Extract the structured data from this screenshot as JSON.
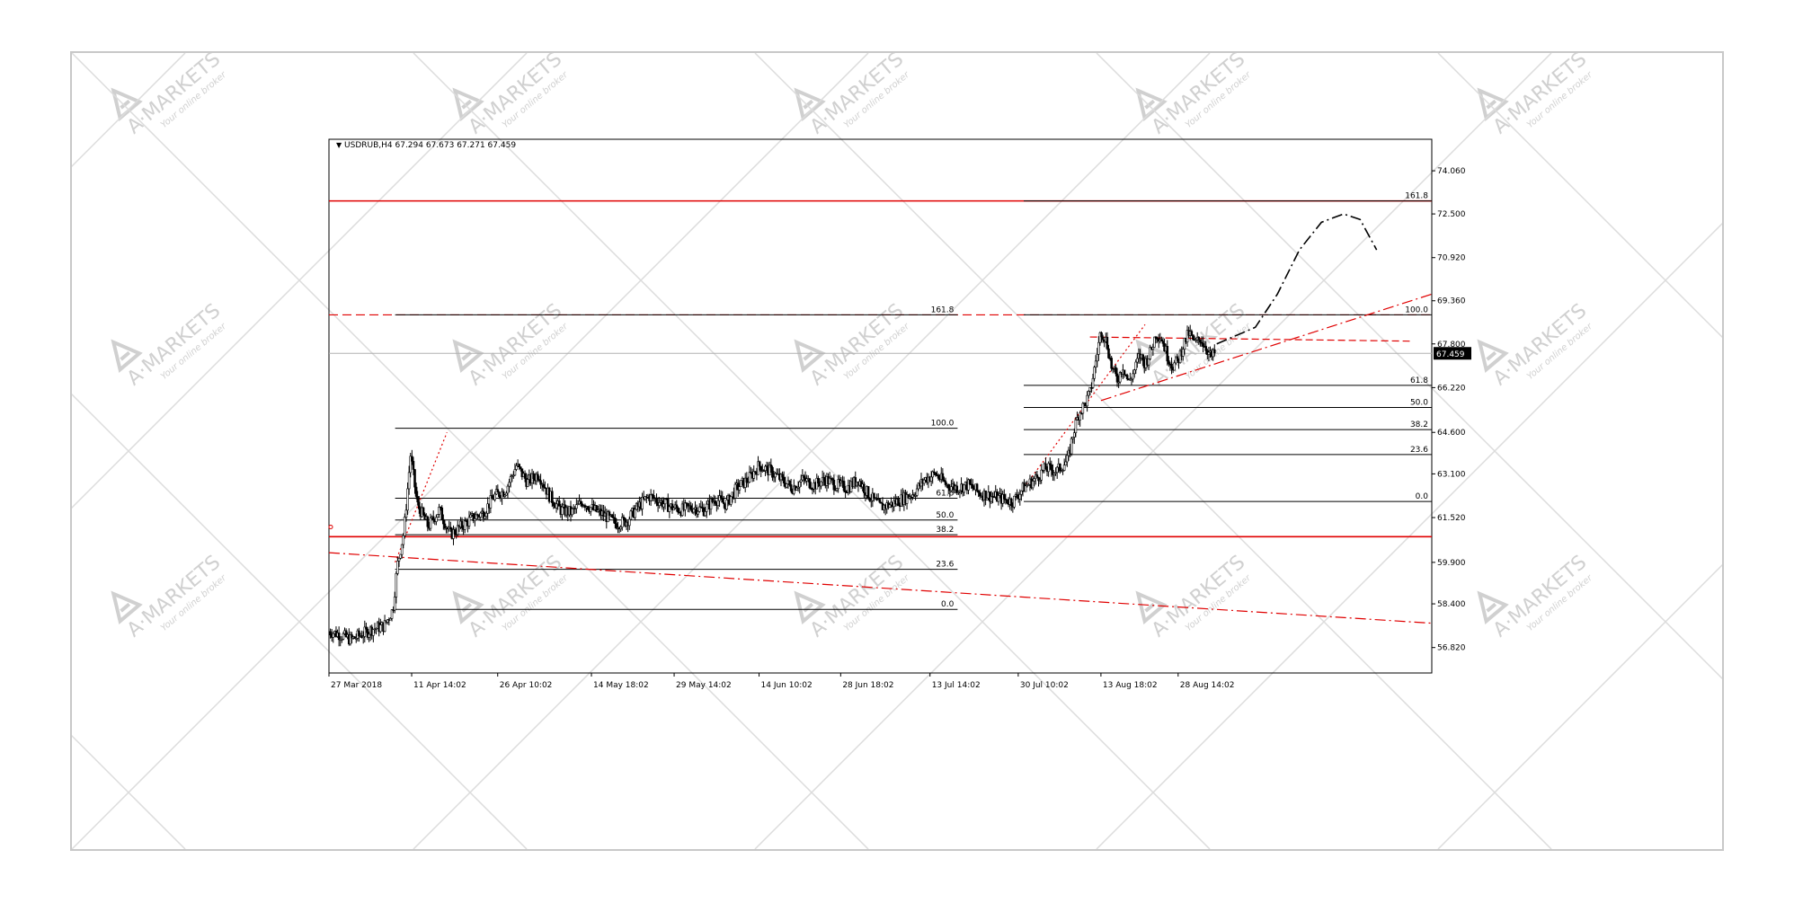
{
  "header": {
    "symbol_line": "USDRUB,H4 67.294 67.673 67.271 67.459"
  },
  "watermark": {
    "brand": "A·MARKETS",
    "tagline": "Your online broker"
  },
  "colors": {
    "candle": "#000000",
    "level_red": "#e00000",
    "fib_black": "#000000",
    "price_box_bg": "#000000",
    "price_box_fg": "#ffffff",
    "watermark": "#d0d0d0"
  },
  "chart_data": {
    "type": "candlestick",
    "symbol": "USDRUB",
    "timeframe": "H4",
    "title": "USDRUB,H4 67.294 67.673 67.271 67.459",
    "ylim": [
      55.9,
      75.2
    ],
    "yticks": [
      74.06,
      72.5,
      70.92,
      69.36,
      67.8,
      66.22,
      64.6,
      63.1,
      61.52,
      59.9,
      58.4,
      56.82
    ],
    "ytick_labels": [
      "74.060",
      "72.500",
      "70.920",
      "69.360",
      "67.800",
      "66.220",
      "64.600",
      "63.100",
      "61.520",
      "59.900",
      "58.400",
      "56.820"
    ],
    "xtick_labels": [
      "27 Mar 2018",
      "11 Apr 14:02",
      "26 Apr 10:02",
      "14 May 18:02",
      "29 May 14:02",
      "14 Jun 10:02",
      "28 Jun 18:02",
      "13 Jul 14:02",
      "30 Jul 10:02",
      "13 Aug 18:02",
      "28 Aug 14:02"
    ],
    "xtick_positions": [
      0,
      0.075,
      0.153,
      0.238,
      0.313,
      0.39,
      0.464,
      0.545,
      0.625,
      0.7,
      0.77
    ],
    "current_price": 67.459,
    "current_price_label": "67.459",
    "horizontal_levels": [
      {
        "value": 72.97,
        "style": "solid",
        "color": "#e00000"
      },
      {
        "value": 68.85,
        "style": "dashed",
        "color": "#e00000"
      },
      {
        "value": 60.83,
        "style": "solid",
        "color": "#e00000"
      }
    ],
    "fib_left": {
      "x_range": [
        0.06,
        0.57
      ],
      "levels": [
        {
          "label": "161.8",
          "value": 68.85
        },
        {
          "label": "100.0",
          "value": 64.75
        },
        {
          "label": "61.8",
          "value": 62.22
        },
        {
          "label": "50.0",
          "value": 61.43
        },
        {
          "label": "38.2",
          "value": 60.9
        },
        {
          "label": "23.6",
          "value": 59.65
        },
        {
          "label": "0.0",
          "value": 58.2
        }
      ]
    },
    "fib_right": {
      "x_range": [
        0.63,
        1.0
      ],
      "levels": [
        {
          "label": "161.8",
          "value": 72.97
        },
        {
          "label": "100.0",
          "value": 68.85
        },
        {
          "label": "61.8",
          "value": 66.3
        },
        {
          "label": "50.0",
          "value": 65.5
        },
        {
          "label": "38.2",
          "value": 64.7
        },
        {
          "label": "23.6",
          "value": 63.8
        },
        {
          "label": "0.0",
          "value": 62.1
        }
      ]
    },
    "trendlines": [
      {
        "style": "dashdot",
        "points": [
          [
            0.0,
            60.25
          ],
          [
            1.0,
            57.7
          ]
        ]
      },
      {
        "style": "dashdot",
        "points": [
          [
            0.7,
            65.75
          ],
          [
            1.0,
            69.6
          ]
        ]
      },
      {
        "style": "dotted",
        "points": [
          [
            0.06,
            59.9
          ],
          [
            0.107,
            64.6
          ]
        ]
      },
      {
        "style": "dotted",
        "points": [
          [
            0.63,
            62.6
          ],
          [
            0.74,
            68.5
          ]
        ]
      },
      {
        "style": "dashed",
        "points": [
          [
            0.69,
            68.05
          ],
          [
            0.98,
            67.9
          ]
        ]
      }
    ],
    "projection": {
      "style": "dashdot",
      "points": [
        [
          0.805,
          67.8
        ],
        [
          0.84,
          68.4
        ],
        [
          0.86,
          69.6
        ],
        [
          0.88,
          71.2
        ],
        [
          0.9,
          72.2
        ],
        [
          0.92,
          72.5
        ],
        [
          0.935,
          72.3
        ],
        [
          0.95,
          71.2
        ]
      ]
    },
    "price_path": [
      [
        0.0,
        57.4
      ],
      [
        0.01,
        57.3
      ],
      [
        0.02,
        57.1
      ],
      [
        0.03,
        57.3
      ],
      [
        0.04,
        57.5
      ],
      [
        0.05,
        57.6
      ],
      [
        0.058,
        58.2
      ],
      [
        0.062,
        59.8
      ],
      [
        0.068,
        61.0
      ],
      [
        0.074,
        63.8
      ],
      [
        0.08,
        62.0
      ],
      [
        0.09,
        61.2
      ],
      [
        0.1,
        61.8
      ],
      [
        0.11,
        60.9
      ],
      [
        0.12,
        61.2
      ],
      [
        0.13,
        61.5
      ],
      [
        0.14,
        61.7
      ],
      [
        0.15,
        62.3
      ],
      [
        0.16,
        62.5
      ],
      [
        0.17,
        63.4
      ],
      [
        0.18,
        62.8
      ],
      [
        0.19,
        63.1
      ],
      [
        0.2,
        62.3
      ],
      [
        0.21,
        61.8
      ],
      [
        0.22,
        61.7
      ],
      [
        0.23,
        62.1
      ],
      [
        0.24,
        61.8
      ],
      [
        0.25,
        61.6
      ],
      [
        0.26,
        61.3
      ],
      [
        0.27,
        61.4
      ],
      [
        0.28,
        61.9
      ],
      [
        0.29,
        62.3
      ],
      [
        0.3,
        62.1
      ],
      [
        0.31,
        61.9
      ],
      [
        0.32,
        61.8
      ],
      [
        0.33,
        61.9
      ],
      [
        0.34,
        61.8
      ],
      [
        0.35,
        62.2
      ],
      [
        0.36,
        62.0
      ],
      [
        0.37,
        62.6
      ],
      [
        0.38,
        62.9
      ],
      [
        0.39,
        63.4
      ],
      [
        0.4,
        63.2
      ],
      [
        0.41,
        62.9
      ],
      [
        0.42,
        62.6
      ],
      [
        0.43,
        62.9
      ],
      [
        0.44,
        62.7
      ],
      [
        0.45,
        62.9
      ],
      [
        0.46,
        62.7
      ],
      [
        0.47,
        62.6
      ],
      [
        0.48,
        62.9
      ],
      [
        0.49,
        62.3
      ],
      [
        0.5,
        61.9
      ],
      [
        0.51,
        62.0
      ],
      [
        0.52,
        62.2
      ],
      [
        0.53,
        62.4
      ],
      [
        0.54,
        62.9
      ],
      [
        0.55,
        63.1
      ],
      [
        0.56,
        62.7
      ],
      [
        0.57,
        62.6
      ],
      [
        0.58,
        62.7
      ],
      [
        0.59,
        62.4
      ],
      [
        0.6,
        62.3
      ],
      [
        0.61,
        62.2
      ],
      [
        0.62,
        62.1
      ],
      [
        0.63,
        62.6
      ],
      [
        0.64,
        62.9
      ],
      [
        0.65,
        63.3
      ],
      [
        0.66,
        63.2
      ],
      [
        0.67,
        63.6
      ],
      [
        0.675,
        64.6
      ],
      [
        0.68,
        65.3
      ],
      [
        0.685,
        65.6
      ],
      [
        0.69,
        66.0
      ],
      [
        0.695,
        67.1
      ],
      [
        0.7,
        68.3
      ],
      [
        0.705,
        67.9
      ],
      [
        0.71,
        66.9
      ],
      [
        0.715,
        66.5
      ],
      [
        0.72,
        67.0
      ],
      [
        0.725,
        66.4
      ],
      [
        0.73,
        66.8
      ],
      [
        0.735,
        67.4
      ],
      [
        0.74,
        67.1
      ],
      [
        0.745,
        67.5
      ],
      [
        0.75,
        68.2
      ],
      [
        0.755,
        68.0
      ],
      [
        0.76,
        67.4
      ],
      [
        0.765,
        67.0
      ],
      [
        0.77,
        67.2
      ],
      [
        0.775,
        67.8
      ],
      [
        0.78,
        68.2
      ],
      [
        0.785,
        67.8
      ],
      [
        0.79,
        68.0
      ],
      [
        0.795,
        67.7
      ],
      [
        0.8,
        67.3
      ],
      [
        0.803,
        67.459
      ]
    ]
  }
}
